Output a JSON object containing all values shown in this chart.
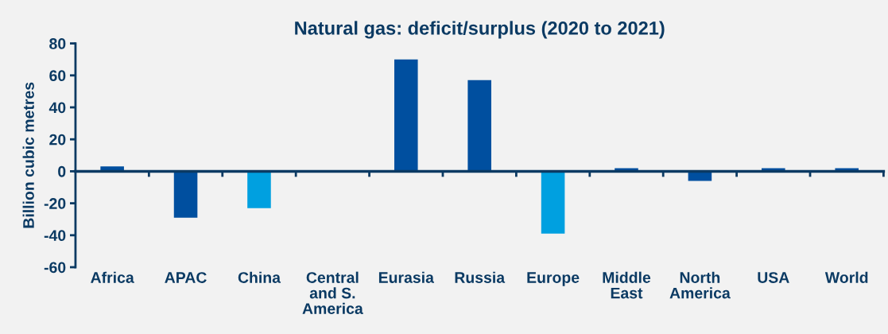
{
  "chart_data": {
    "type": "bar",
    "title": "Natural gas: deficit/surplus (2020 to 2021)",
    "ylabel": "Billion cubic metres",
    "categories": [
      "Africa",
      "APAC",
      "China",
      "Central\nand S.\nAmerica",
      "Eurasia",
      "Russia",
      "Europe",
      "Middle\nEast",
      "North\nAmerica",
      "USA",
      "World"
    ],
    "values": [
      3,
      -29,
      -23,
      0,
      70,
      57,
      -39,
      2,
      -6,
      2,
      2
    ],
    "colors": [
      "#004f9f",
      "#004f9f",
      "#00a0e0",
      "#004f9f",
      "#004f9f",
      "#004f9f",
      "#00a0e0",
      "#004f9f",
      "#004f9f",
      "#004f9f",
      "#004f9f"
    ],
    "ylim": [
      -60,
      80
    ],
    "yticks": [
      -60,
      -40,
      -20,
      0,
      20,
      40,
      60,
      80
    ],
    "grid": false,
    "legend": false
  }
}
